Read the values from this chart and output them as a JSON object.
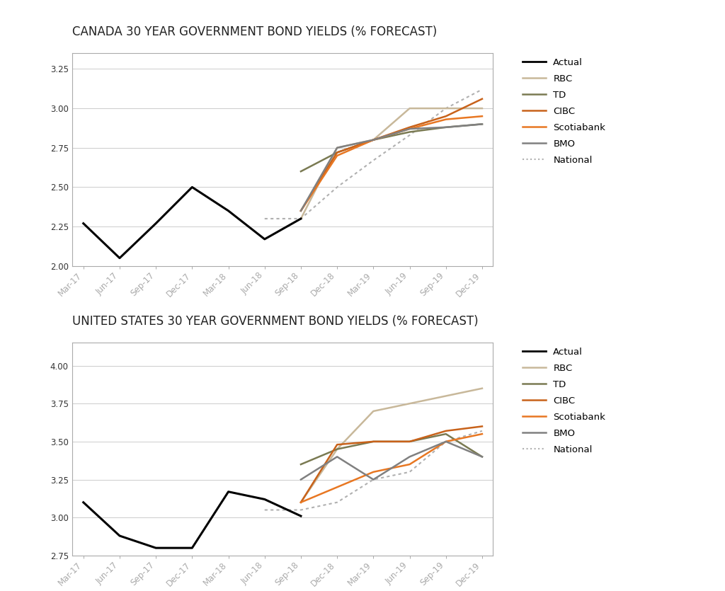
{
  "title1": "CANADA 30 YEAR GOVERNMENT BOND YIELDS (% FORECAST)",
  "title2": "UNITED STATES 30 YEAR GOVERNMENT BOND YIELDS (% FORECAST)",
  "x_labels": [
    "Mar-17",
    "Jun-17",
    "Sep-17",
    "Dec-17",
    "Mar-18",
    "Jun-18",
    "Sep-18",
    "Dec-18",
    "Mar-19",
    "Jun-19",
    "Sep-19",
    "Dec-19"
  ],
  "canada": {
    "actual_x": [
      0,
      1,
      2,
      3,
      4,
      5,
      6
    ],
    "actual_y": [
      2.27,
      2.05,
      2.27,
      2.5,
      2.35,
      2.17,
      2.3
    ],
    "rbc_x": [
      6,
      7,
      8,
      9,
      10,
      11
    ],
    "rbc_y": [
      2.3,
      2.75,
      2.8,
      3.0,
      3.0,
      3.0
    ],
    "td_x": [
      6,
      7,
      8,
      9,
      10,
      11
    ],
    "td_y": [
      2.6,
      2.72,
      2.8,
      2.85,
      2.88,
      2.9
    ],
    "cibc_x": [
      6,
      7,
      8,
      9,
      10,
      11
    ],
    "cibc_y": [
      2.35,
      2.72,
      2.8,
      2.88,
      2.95,
      3.06
    ],
    "scot_x": [
      6,
      7,
      8,
      9,
      10,
      11
    ],
    "scot_y": [
      2.35,
      2.7,
      2.8,
      2.87,
      2.93,
      2.95
    ],
    "bmo_x": [
      6,
      7,
      8,
      9,
      10,
      11
    ],
    "bmo_y": [
      2.35,
      2.75,
      2.8,
      2.87,
      2.88,
      2.9
    ],
    "natl_x": [
      5,
      6,
      7,
      8,
      9,
      10,
      11
    ],
    "natl_y": [
      2.3,
      2.3,
      2.5,
      2.67,
      2.83,
      3.0,
      3.12
    ],
    "ylim": [
      2.0,
      3.35
    ],
    "yticks": [
      2.0,
      2.25,
      2.5,
      2.75,
      3.0,
      3.25
    ]
  },
  "us": {
    "actual_x": [
      0,
      1,
      2,
      3,
      4,
      5,
      6
    ],
    "actual_y": [
      3.1,
      2.88,
      2.8,
      2.8,
      3.17,
      3.12,
      3.01
    ],
    "rbc_x": [
      6,
      7,
      8,
      9,
      10,
      11
    ],
    "rbc_y": [
      3.1,
      3.45,
      3.7,
      3.75,
      3.8,
      3.85
    ],
    "td_x": [
      6,
      7,
      8,
      9,
      10,
      11
    ],
    "td_y": [
      3.35,
      3.45,
      3.5,
      3.5,
      3.55,
      3.4
    ],
    "cibc_x": [
      6,
      7,
      8,
      9,
      10,
      11
    ],
    "cibc_y": [
      3.1,
      3.48,
      3.5,
      3.5,
      3.57,
      3.6
    ],
    "scot_x": [
      6,
      7,
      8,
      9,
      10,
      11
    ],
    "scot_y": [
      3.1,
      3.2,
      3.3,
      3.35,
      3.5,
      3.55
    ],
    "bmo_x": [
      6,
      7,
      8,
      9,
      10,
      11
    ],
    "bmo_y": [
      3.25,
      3.4,
      3.25,
      3.4,
      3.5,
      3.4
    ],
    "natl_x": [
      5,
      6,
      7,
      8,
      9,
      10,
      11
    ],
    "natl_y": [
      3.05,
      3.05,
      3.1,
      3.25,
      3.3,
      3.5,
      3.57
    ],
    "ylim": [
      2.75,
      4.15
    ],
    "yticks": [
      2.75,
      3.0,
      3.25,
      3.5,
      3.75,
      4.0
    ]
  },
  "colors": {
    "actual": "#000000",
    "rbc": "#c8b89a",
    "td": "#7a7a52",
    "cibc": "#c8621a",
    "scot": "#e87722",
    "bmo": "#808080",
    "natl": "#b0b0b0"
  },
  "bg": "#ffffff",
  "spine_color": "#aaaaaa",
  "grid_color": "#cccccc",
  "title_fontsize": 12,
  "tick_fontsize": 8.5,
  "legend_fontsize": 9.5
}
